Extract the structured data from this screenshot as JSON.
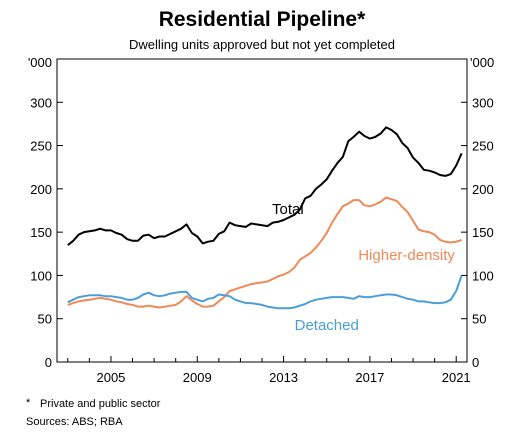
{
  "chart_data": {
    "type": "line",
    "title": "Residential Pipeline*",
    "subtitle": "Dwelling units approved but not yet completed",
    "y_unit": "'000",
    "ylim": [
      0,
      350
    ],
    "y_ticks": [
      0,
      50,
      100,
      150,
      200,
      250,
      300
    ],
    "x_range": [
      2002.5,
      2021.5
    ],
    "x_ticks": [
      2005,
      2009,
      2013,
      2017,
      2021
    ],
    "grid": false,
    "series": [
      {
        "name": "Total",
        "color": "#000000",
        "label_at": [
          2013.2,
          171
        ],
        "points": [
          [
            2003.0,
            135
          ],
          [
            2003.25,
            140
          ],
          [
            2003.5,
            147
          ],
          [
            2003.75,
            150
          ],
          [
            2004.0,
            151
          ],
          [
            2004.25,
            152
          ],
          [
            2004.5,
            154
          ],
          [
            2004.75,
            152
          ],
          [
            2005.0,
            152
          ],
          [
            2005.25,
            149
          ],
          [
            2005.5,
            147
          ],
          [
            2005.75,
            142
          ],
          [
            2006.0,
            140
          ],
          [
            2006.25,
            140
          ],
          [
            2006.5,
            146
          ],
          [
            2006.75,
            147
          ],
          [
            2007.0,
            143
          ],
          [
            2007.25,
            145
          ],
          [
            2007.5,
            145
          ],
          [
            2007.75,
            148
          ],
          [
            2008.0,
            151
          ],
          [
            2008.25,
            154
          ],
          [
            2008.5,
            159
          ],
          [
            2008.75,
            149
          ],
          [
            2009.0,
            145
          ],
          [
            2009.25,
            137
          ],
          [
            2009.5,
            139
          ],
          [
            2009.75,
            140
          ],
          [
            2010.0,
            148
          ],
          [
            2010.25,
            151
          ],
          [
            2010.5,
            161
          ],
          [
            2010.75,
            158
          ],
          [
            2011.0,
            157
          ],
          [
            2011.25,
            156
          ],
          [
            2011.5,
            160
          ],
          [
            2011.75,
            159
          ],
          [
            2012.0,
            158
          ],
          [
            2012.25,
            157
          ],
          [
            2012.5,
            161
          ],
          [
            2012.75,
            162
          ],
          [
            2013.0,
            164
          ],
          [
            2013.25,
            167
          ],
          [
            2013.5,
            170
          ],
          [
            2013.75,
            176
          ],
          [
            2014.0,
            189
          ],
          [
            2014.25,
            192
          ],
          [
            2014.5,
            200
          ],
          [
            2014.75,
            205
          ],
          [
            2015.0,
            211
          ],
          [
            2015.25,
            221
          ],
          [
            2015.5,
            230
          ],
          [
            2015.75,
            237
          ],
          [
            2016.0,
            255
          ],
          [
            2016.25,
            260
          ],
          [
            2016.5,
            266
          ],
          [
            2016.75,
            261
          ],
          [
            2017.0,
            258
          ],
          [
            2017.25,
            260
          ],
          [
            2017.5,
            264
          ],
          [
            2017.75,
            271
          ],
          [
            2018.0,
            268
          ],
          [
            2018.25,
            263
          ],
          [
            2018.5,
            253
          ],
          [
            2018.75,
            247
          ],
          [
            2019.0,
            236
          ],
          [
            2019.25,
            230
          ],
          [
            2019.5,
            222
          ],
          [
            2019.75,
            221
          ],
          [
            2020.0,
            219
          ],
          [
            2020.25,
            216
          ],
          [
            2020.5,
            215
          ],
          [
            2020.75,
            217
          ],
          [
            2021.0,
            227
          ],
          [
            2021.25,
            241
          ]
        ]
      },
      {
        "name": "Higher-density",
        "color": "#ef8a56",
        "label_at": [
          2018.7,
          118
        ],
        "points": [
          [
            2003.0,
            66
          ],
          [
            2003.25,
            68
          ],
          [
            2003.5,
            70
          ],
          [
            2003.75,
            71
          ],
          [
            2004.0,
            72
          ],
          [
            2004.25,
            73
          ],
          [
            2004.5,
            74
          ],
          [
            2004.75,
            73
          ],
          [
            2005.0,
            72
          ],
          [
            2005.25,
            70
          ],
          [
            2005.5,
            69
          ],
          [
            2005.75,
            67
          ],
          [
            2006.0,
            66
          ],
          [
            2006.25,
            64
          ],
          [
            2006.5,
            64
          ],
          [
            2006.75,
            65
          ],
          [
            2007.0,
            64
          ],
          [
            2007.25,
            63
          ],
          [
            2007.5,
            64
          ],
          [
            2007.75,
            65
          ],
          [
            2008.0,
            66
          ],
          [
            2008.25,
            70
          ],
          [
            2008.5,
            76
          ],
          [
            2008.75,
            71
          ],
          [
            2009.0,
            67
          ],
          [
            2009.25,
            64
          ],
          [
            2009.5,
            64
          ],
          [
            2009.75,
            65
          ],
          [
            2010.0,
            70
          ],
          [
            2010.25,
            75
          ],
          [
            2010.5,
            82
          ],
          [
            2010.75,
            84
          ],
          [
            2011.0,
            86
          ],
          [
            2011.25,
            88
          ],
          [
            2011.5,
            90
          ],
          [
            2011.75,
            91
          ],
          [
            2012.0,
            92
          ],
          [
            2012.25,
            93
          ],
          [
            2012.5,
            96
          ],
          [
            2012.75,
            99
          ],
          [
            2013.0,
            101
          ],
          [
            2013.25,
            104
          ],
          [
            2013.5,
            109
          ],
          [
            2013.75,
            118
          ],
          [
            2014.0,
            122
          ],
          [
            2014.25,
            126
          ],
          [
            2014.5,
            132
          ],
          [
            2014.75,
            140
          ],
          [
            2015.0,
            149
          ],
          [
            2015.25,
            161
          ],
          [
            2015.5,
            171
          ],
          [
            2015.75,
            180
          ],
          [
            2016.0,
            183
          ],
          [
            2016.25,
            187
          ],
          [
            2016.5,
            187
          ],
          [
            2016.75,
            181
          ],
          [
            2017.0,
            180
          ],
          [
            2017.25,
            182
          ],
          [
            2017.5,
            185
          ],
          [
            2017.75,
            190
          ],
          [
            2018.0,
            188
          ],
          [
            2018.25,
            186
          ],
          [
            2018.5,
            179
          ],
          [
            2018.75,
            173
          ],
          [
            2019.0,
            163
          ],
          [
            2019.25,
            153
          ],
          [
            2019.5,
            151
          ],
          [
            2019.75,
            150
          ],
          [
            2020.0,
            147
          ],
          [
            2020.25,
            141
          ],
          [
            2020.5,
            139
          ],
          [
            2020.75,
            138
          ],
          [
            2021.0,
            139
          ],
          [
            2021.25,
            141
          ]
        ]
      },
      {
        "name": "Detached",
        "color": "#4a9fd8",
        "label_at": [
          2015.0,
          37
        ],
        "points": [
          [
            2003.0,
            69
          ],
          [
            2003.25,
            72
          ],
          [
            2003.5,
            75
          ],
          [
            2003.75,
            76
          ],
          [
            2004.0,
            77
          ],
          [
            2004.25,
            77
          ],
          [
            2004.5,
            77
          ],
          [
            2004.75,
            76
          ],
          [
            2005.0,
            76
          ],
          [
            2005.25,
            75
          ],
          [
            2005.5,
            74
          ],
          [
            2005.75,
            72
          ],
          [
            2006.0,
            72
          ],
          [
            2006.25,
            74
          ],
          [
            2006.5,
            78
          ],
          [
            2006.75,
            80
          ],
          [
            2007.0,
            77
          ],
          [
            2007.25,
            76
          ],
          [
            2007.5,
            77
          ],
          [
            2007.75,
            79
          ],
          [
            2008.0,
            80
          ],
          [
            2008.25,
            81
          ],
          [
            2008.5,
            81
          ],
          [
            2008.75,
            74
          ],
          [
            2009.0,
            72
          ],
          [
            2009.25,
            70
          ],
          [
            2009.5,
            73
          ],
          [
            2009.75,
            74
          ],
          [
            2010.0,
            78
          ],
          [
            2010.25,
            77
          ],
          [
            2010.5,
            76
          ],
          [
            2010.75,
            72
          ],
          [
            2011.0,
            70
          ],
          [
            2011.25,
            68
          ],
          [
            2011.5,
            68
          ],
          [
            2011.75,
            67
          ],
          [
            2012.0,
            66
          ],
          [
            2012.25,
            64
          ],
          [
            2012.5,
            63
          ],
          [
            2012.75,
            62
          ],
          [
            2013.0,
            62
          ],
          [
            2013.25,
            62
          ],
          [
            2013.5,
            63
          ],
          [
            2013.75,
            65
          ],
          [
            2014.0,
            67
          ],
          [
            2014.25,
            70
          ],
          [
            2014.5,
            72
          ],
          [
            2014.75,
            73
          ],
          [
            2015.0,
            74
          ],
          [
            2015.25,
            75
          ],
          [
            2015.5,
            75
          ],
          [
            2015.75,
            75
          ],
          [
            2016.0,
            74
          ],
          [
            2016.25,
            73
          ],
          [
            2016.5,
            76
          ],
          [
            2016.75,
            75
          ],
          [
            2017.0,
            75
          ],
          [
            2017.25,
            76
          ],
          [
            2017.5,
            77
          ],
          [
            2017.75,
            78
          ],
          [
            2018.0,
            78
          ],
          [
            2018.25,
            77
          ],
          [
            2018.5,
            75
          ],
          [
            2018.75,
            73
          ],
          [
            2019.0,
            72
          ],
          [
            2019.25,
            70
          ],
          [
            2019.5,
            70
          ],
          [
            2019.75,
            69
          ],
          [
            2020.0,
            68
          ],
          [
            2020.25,
            68
          ],
          [
            2020.5,
            69
          ],
          [
            2020.75,
            72
          ],
          [
            2021.0,
            82
          ],
          [
            2021.25,
            100
          ]
        ]
      }
    ]
  },
  "footnote": {
    "marker": "*",
    "text": "Private and public sector"
  },
  "sources": "Sources: ABS; RBA"
}
